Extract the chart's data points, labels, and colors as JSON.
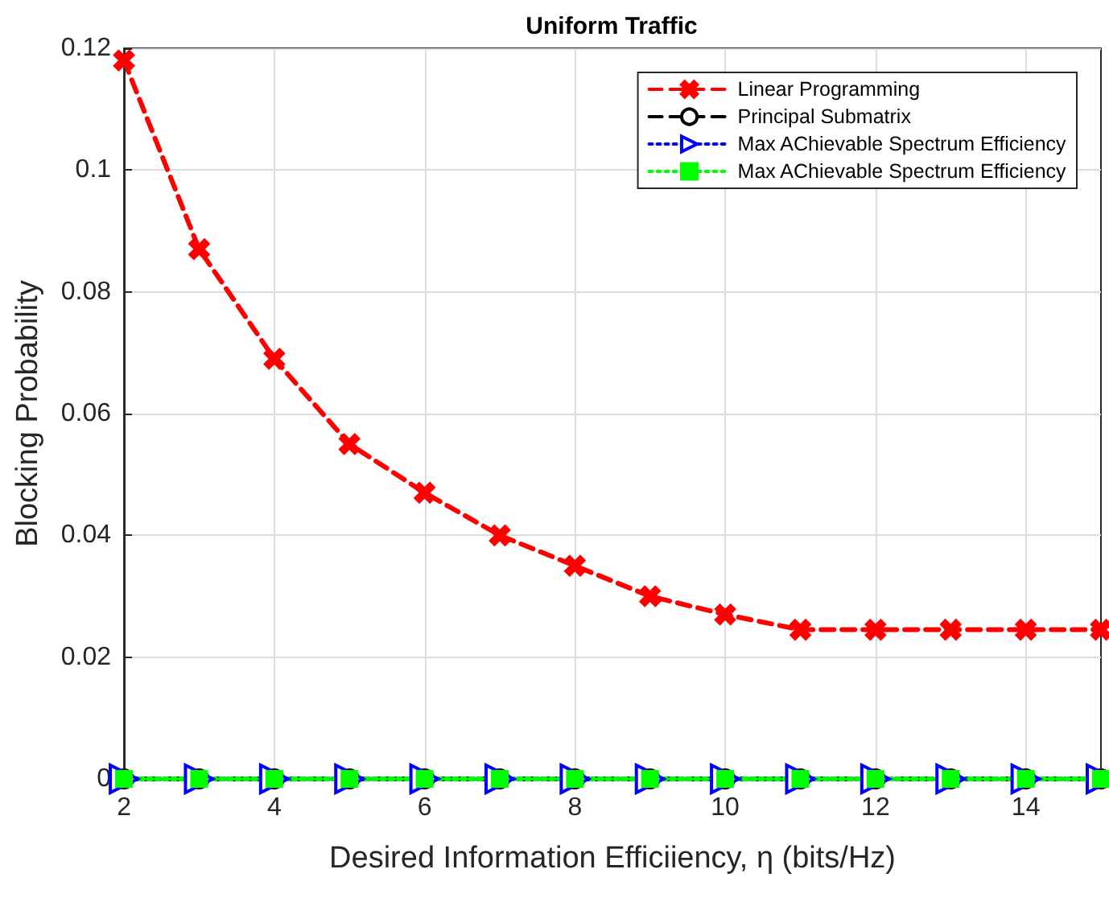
{
  "chart_data": {
    "type": "line",
    "title": "Uniform Traffic",
    "xlabel": "Desired Information Efficiiency, η (bits/Hz)",
    "ylabel": "Blocking Probability",
    "x": [
      2,
      3,
      4,
      5,
      6,
      7,
      8,
      9,
      10,
      11,
      12,
      13,
      14,
      15
    ],
    "series": [
      {
        "name": "Linear Programming",
        "color": "#ff0000",
        "marker": "cross",
        "line_style": "dashed",
        "values": [
          0.118,
          0.087,
          0.069,
          0.055,
          0.047,
          0.04,
          0.035,
          0.03,
          0.027,
          0.0245,
          0.0245,
          0.0245,
          0.0245,
          0.0245
        ]
      },
      {
        "name": "Principal Submatrix",
        "color": "#000000",
        "marker": "circle",
        "line_style": "dashed",
        "values": [
          0,
          0,
          0,
          0,
          0,
          0,
          0,
          0,
          0,
          0,
          0,
          0,
          0,
          0
        ]
      },
      {
        "name": "Max AChievable Spectrum Efficiency",
        "color": "#0000ff",
        "marker": "triangle",
        "line_style": "dotted",
        "values": [
          0,
          0,
          0,
          0,
          0,
          0,
          0,
          0,
          0,
          0,
          0,
          0,
          0,
          0
        ]
      },
      {
        "name": "Max AChievable Spectrum Efficiency",
        "color": "#00ff00",
        "marker": "square",
        "line_style": "dotted",
        "values": [
          0,
          0,
          0,
          0,
          0,
          0,
          0,
          0,
          0,
          0,
          0,
          0,
          0,
          0
        ]
      }
    ],
    "xlim": [
      2,
      15
    ],
    "xticks": [
      2,
      4,
      6,
      8,
      10,
      12,
      14
    ],
    "ylim": [
      0,
      0.12
    ],
    "yticks": [
      0,
      0.02,
      0.04,
      0.06,
      0.08,
      0.1,
      0.12
    ],
    "grid": true,
    "legend": "top right"
  }
}
